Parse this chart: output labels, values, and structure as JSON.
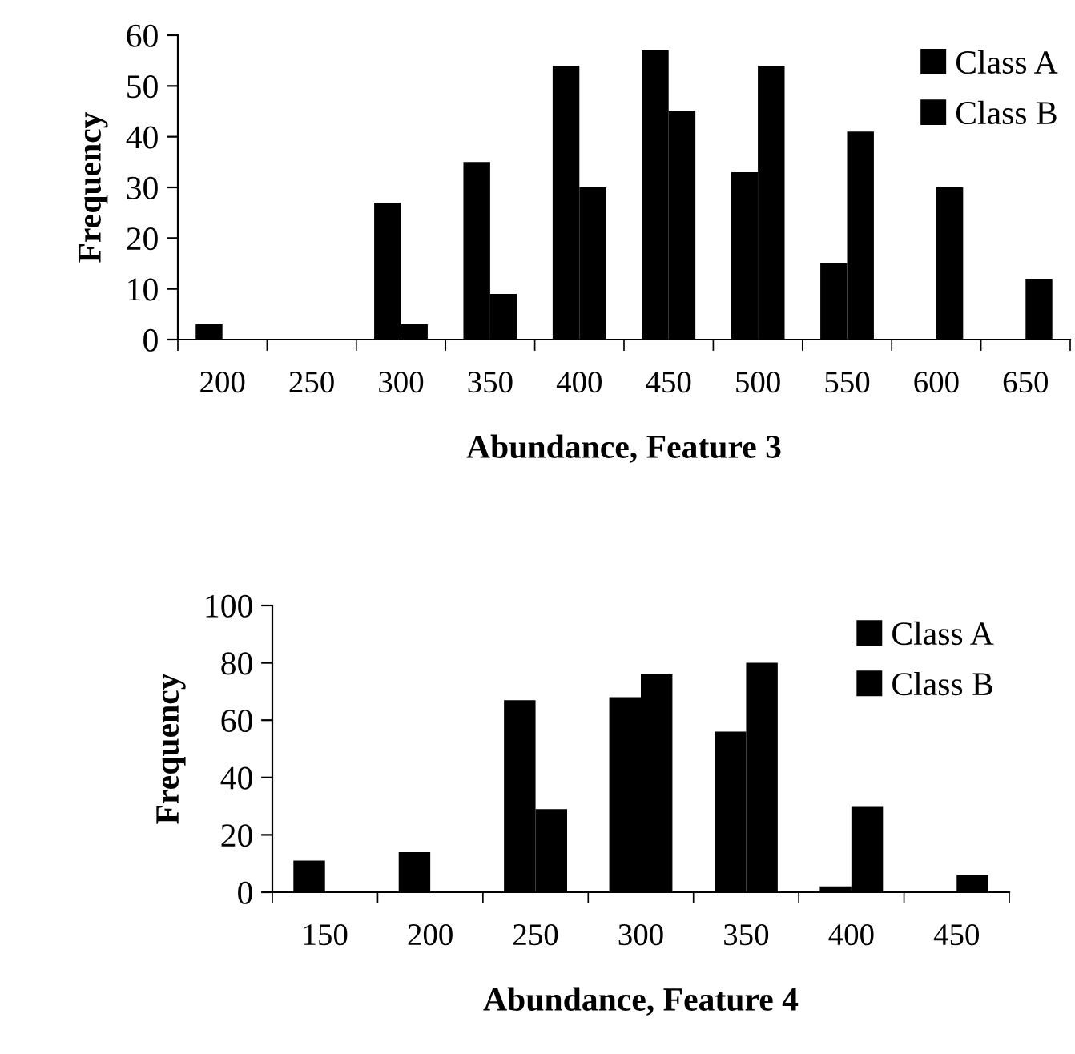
{
  "chart_data": [
    {
      "type": "bar",
      "xlabel": "Abundance, Feature 3",
      "ylabel": "Frequency",
      "categories": [
        "200",
        "250",
        "300",
        "350",
        "400",
        "450",
        "500",
        "550",
        "600",
        "650"
      ],
      "series": [
        {
          "name": "Class A",
          "color": "#000000",
          "values": [
            3,
            0,
            27,
            35,
            54,
            57,
            33,
            15,
            0,
            0
          ]
        },
        {
          "name": "Class B",
          "color": "#000000",
          "values": [
            0,
            0,
            3,
            9,
            30,
            45,
            54,
            41,
            30,
            12
          ]
        }
      ],
      "ylim": [
        0,
        60
      ],
      "yticks": [
        0,
        10,
        20,
        30,
        40,
        50,
        60
      ],
      "grid": false,
      "legend": "top right"
    },
    {
      "type": "bar",
      "xlabel": "Abundance, Feature 4",
      "ylabel": "Frequency",
      "categories": [
        "150",
        "200",
        "250",
        "300",
        "350",
        "400",
        "450"
      ],
      "series": [
        {
          "name": "Class A",
          "color": "#000000",
          "values": [
            11,
            14,
            67,
            68,
            56,
            2,
            0
          ]
        },
        {
          "name": "Class B",
          "color": "#000000",
          "values": [
            0,
            0,
            29,
            76,
            80,
            30,
            6
          ]
        }
      ],
      "ylim": [
        0,
        100
      ],
      "yticks": [
        0,
        20,
        40,
        60,
        80,
        100
      ],
      "grid": false,
      "legend": "top right"
    }
  ]
}
